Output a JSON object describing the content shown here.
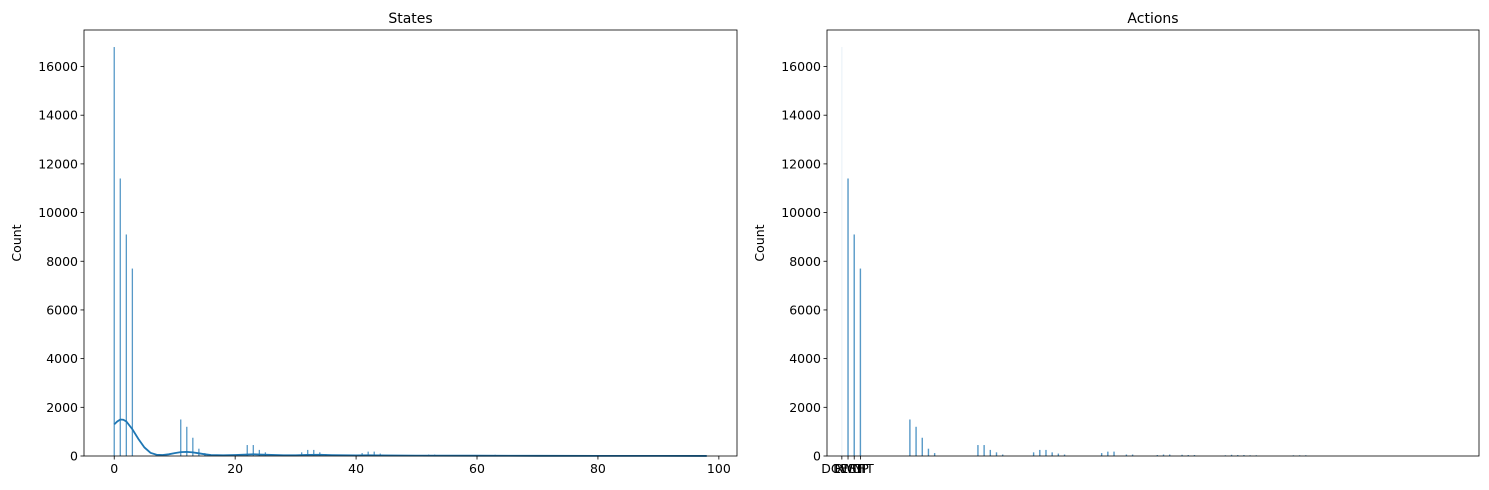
{
  "chart_data": [
    {
      "type": "bar",
      "title": "States",
      "xlabel": "",
      "ylabel": "Count",
      "xlim": [
        -5,
        103
      ],
      "ylim": [
        0,
        17500
      ],
      "xticks": [
        "0",
        "20",
        "40",
        "60",
        "80",
        "100"
      ],
      "xtick_values": [
        0,
        20,
        40,
        60,
        80,
        100
      ],
      "yticks": [
        "0",
        "2000",
        "4000",
        "6000",
        "8000",
        "10000",
        "12000",
        "14000",
        "16000"
      ],
      "ytick_values": [
        0,
        2000,
        4000,
        6000,
        8000,
        10000,
        12000,
        14000,
        16000
      ],
      "bar_color": "#1f77b4",
      "bars": [
        {
          "x": 0,
          "value": 16800
        },
        {
          "x": 1,
          "value": 11400
        },
        {
          "x": 2,
          "value": 9100
        },
        {
          "x": 3,
          "value": 7700
        },
        {
          "x": 11,
          "value": 1500
        },
        {
          "x": 12,
          "value": 1200
        },
        {
          "x": 13,
          "value": 750
        },
        {
          "x": 14,
          "value": 300
        },
        {
          "x": 15,
          "value": 120
        },
        {
          "x": 22,
          "value": 450
        },
        {
          "x": 23,
          "value": 450
        },
        {
          "x": 24,
          "value": 250
        },
        {
          "x": 25,
          "value": 150
        },
        {
          "x": 31,
          "value": 150
        },
        {
          "x": 32,
          "value": 250
        },
        {
          "x": 33,
          "value": 250
        },
        {
          "x": 34,
          "value": 150
        },
        {
          "x": 35,
          "value": 80
        },
        {
          "x": 41,
          "value": 120
        },
        {
          "x": 42,
          "value": 180
        },
        {
          "x": 43,
          "value": 180
        },
        {
          "x": 44,
          "value": 100
        },
        {
          "x": 52,
          "value": 60
        },
        {
          "x": 53,
          "value": 60
        },
        {
          "x": 54,
          "value": 40
        },
        {
          "x": 62,
          "value": 30
        },
        {
          "x": 63,
          "value": 50
        }
      ],
      "kde": {
        "x": [
          0,
          0.5,
          1,
          1.5,
          2,
          3,
          4,
          5,
          6,
          7,
          8,
          9,
          10,
          11,
          12,
          13,
          14,
          15,
          16,
          18,
          20,
          22,
          23,
          24,
          26,
          28,
          30,
          32,
          34,
          36,
          40,
          42,
          44,
          50,
          60,
          70,
          80,
          90,
          98
        ],
        "y": [
          1300,
          1420,
          1500,
          1490,
          1420,
          1100,
          700,
          350,
          130,
          50,
          40,
          70,
          120,
          160,
          170,
          150,
          110,
          70,
          40,
          30,
          40,
          60,
          70,
          60,
          45,
          30,
          30,
          45,
          50,
          35,
          25,
          30,
          25,
          15,
          12,
          8,
          5,
          4,
          3
        ]
      }
    },
    {
      "type": "bar",
      "title": "Actions",
      "xlabel": "",
      "ylabel": "Count",
      "xlim": [
        -2.4,
        103
      ],
      "ylim": [
        0,
        17500
      ],
      "xticks": [
        "DOWN",
        "LEFT",
        "RIGHT",
        "UP"
      ],
      "xtick_values": [
        0,
        1,
        2,
        3
      ],
      "yticks": [
        "0",
        "2000",
        "4000",
        "6000",
        "8000",
        "10000",
        "12000",
        "14000",
        "16000"
      ],
      "ytick_values": [
        0,
        2000,
        4000,
        6000,
        8000,
        10000,
        12000,
        14000,
        16000
      ],
      "bar_color": "#1f77b4",
      "bars": [
        {
          "x": 0,
          "value": 16800
        },
        {
          "x": 1,
          "value": 11400
        },
        {
          "x": 2,
          "value": 9100
        },
        {
          "x": 3,
          "value": 7700
        },
        {
          "x": 11,
          "value": 1500
        },
        {
          "x": 12,
          "value": 1200
        },
        {
          "x": 13,
          "value": 750
        },
        {
          "x": 14,
          "value": 300
        },
        {
          "x": 15,
          "value": 120
        },
        {
          "x": 22,
          "value": 450
        },
        {
          "x": 23,
          "value": 450
        },
        {
          "x": 24,
          "value": 250
        },
        {
          "x": 25,
          "value": 150
        },
        {
          "x": 26,
          "value": 60
        },
        {
          "x": 31,
          "value": 150
        },
        {
          "x": 32,
          "value": 250
        },
        {
          "x": 33,
          "value": 250
        },
        {
          "x": 34,
          "value": 150
        },
        {
          "x": 35,
          "value": 100
        },
        {
          "x": 36,
          "value": 60
        },
        {
          "x": 42,
          "value": 120
        },
        {
          "x": 43,
          "value": 180
        },
        {
          "x": 44,
          "value": 180
        },
        {
          "x": 46,
          "value": 60
        },
        {
          "x": 47,
          "value": 60
        },
        {
          "x": 51,
          "value": 40
        },
        {
          "x": 52,
          "value": 60
        },
        {
          "x": 53,
          "value": 60
        },
        {
          "x": 55,
          "value": 50
        },
        {
          "x": 56,
          "value": 40
        },
        {
          "x": 57,
          "value": 40
        },
        {
          "x": 62,
          "value": 30
        },
        {
          "x": 63,
          "value": 50
        },
        {
          "x": 64,
          "value": 40
        },
        {
          "x": 65,
          "value": 40
        },
        {
          "x": 66,
          "value": 30
        },
        {
          "x": 67,
          "value": 30
        },
        {
          "x": 73,
          "value": 30
        },
        {
          "x": 74,
          "value": 30
        },
        {
          "x": 75,
          "value": 30
        }
      ]
    }
  ]
}
